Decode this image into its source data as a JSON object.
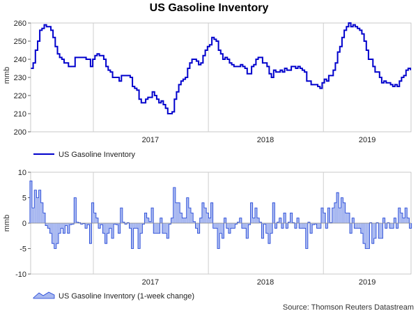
{
  "title": "US Gasoline Inventory",
  "source": "Source: Thomson Reuters Datastream",
  "chart_data": [
    {
      "type": "line",
      "ylabel": "mmb",
      "ylim": [
        200,
        260
      ],
      "yticks": [
        200,
        210,
        220,
        230,
        240,
        250,
        260
      ],
      "xtick_labels": [
        "2017",
        "2018",
        "2019"
      ],
      "grid": "vertical year lines",
      "legend_position": "bottom-left",
      "series": [
        {
          "name": "US Gasoline Inventory",
          "color": "#0000cc",
          "start": "2016-06-17",
          "step_days": 7,
          "values": [
            235,
            238,
            245,
            250,
            256,
            257,
            259,
            258,
            258,
            256,
            252,
            247,
            243,
            241,
            240,
            238,
            238,
            236,
            236,
            236,
            241,
            241,
            241,
            241,
            241,
            240,
            240,
            236,
            240,
            242,
            243,
            242,
            242,
            240,
            236,
            234,
            233,
            230,
            230,
            230,
            228,
            231,
            231,
            231,
            231,
            230,
            225,
            224,
            223,
            218,
            216,
            216,
            218,
            219,
            219,
            222,
            220,
            218,
            216,
            217,
            215,
            213,
            210,
            210,
            211,
            218,
            222,
            226,
            228,
            229,
            230,
            235,
            238,
            240,
            240,
            239,
            237,
            238,
            242,
            245,
            247,
            248,
            252,
            251,
            250,
            245,
            243,
            240,
            241,
            240,
            238,
            237,
            236,
            236,
            236,
            237,
            236,
            235,
            232,
            232,
            236,
            237,
            240,
            241,
            241,
            238,
            238,
            236,
            232,
            230,
            234,
            233,
            233,
            234,
            233,
            235,
            234,
            234,
            236,
            236,
            235,
            236,
            235,
            234,
            233,
            228,
            228,
            226,
            226,
            226,
            225,
            224,
            227,
            229,
            228,
            231,
            231,
            234,
            238,
            244,
            247,
            252,
            256,
            258,
            260,
            258,
            259,
            258,
            257,
            256,
            254,
            250,
            245,
            240,
            240,
            236,
            233,
            233,
            230,
            227,
            228,
            227,
            227,
            226,
            225,
            226,
            225,
            228,
            230,
            231,
            234,
            235,
            234
          ]
        }
      ]
    },
    {
      "type": "bar",
      "ylabel": "mmb",
      "ylim": [
        -10,
        10
      ],
      "yticks": [
        -10,
        -5,
        0,
        5,
        10
      ],
      "xtick_labels": [
        "2017",
        "2018",
        "2019"
      ],
      "grid": "vertical year lines",
      "legend_position": "bottom-left",
      "series": [
        {
          "name": "US Gasoline Inventory (1-week change)",
          "color": "#a8b8f0",
          "edge_color": "#1a3fd6",
          "start": "2016-06-17",
          "step_days": 7,
          "values": [
            8.3,
            3.0,
            6.5,
            5.0,
            6.5,
            4.0,
            2.0,
            -0.5,
            -1.0,
            -2.0,
            -4.0,
            -5.0,
            -4.0,
            -2.0,
            -1.0,
            -2.0,
            -0.5,
            -2.0,
            -0.3,
            -0.2,
            5.0,
            0.2,
            0.1,
            -0.2,
            -0.1,
            -1.0,
            -0.3,
            -4.0,
            4.0,
            2.0,
            1.0,
            -1.0,
            -0.3,
            -2.0,
            -4.0,
            -2.0,
            -1.0,
            -3.0,
            -0.2,
            -0.3,
            -2.0,
            3.0,
            0.2,
            -0.2,
            0.1,
            -1.0,
            -5.0,
            -1.0,
            -1.0,
            -5.0,
            -2.0,
            -0.2,
            2.0,
            1.0,
            0.3,
            3.0,
            -2.0,
            -2.0,
            -2.0,
            1.0,
            -2.0,
            -2.0,
            -3.0,
            -0.2,
            1.0,
            7.0,
            4.0,
            4.0,
            2.0,
            1.0,
            1.0,
            5.0,
            3.0,
            2.0,
            0.3,
            -1.0,
            -2.0,
            1.0,
            4.0,
            3.0,
            2.0,
            1.0,
            4.0,
            -1.0,
            -1.0,
            -5.0,
            -2.0,
            -3.0,
            1.0,
            -1.0,
            -2.0,
            -1.0,
            -1.0,
            -0.2,
            0.2,
            1.0,
            -1.0,
            -1.0,
            -3.0,
            -0.3,
            4.0,
            1.0,
            3.0,
            1.0,
            0.2,
            -3.0,
            -0.2,
            -2.0,
            -4.0,
            -2.0,
            4.0,
            -1.0,
            0.2,
            1.0,
            -1.0,
            2.0,
            -1.0,
            0.2,
            2.0,
            0.1,
            -1.0,
            1.0,
            -1.0,
            -1.0,
            -1.0,
            -5.0,
            0.2,
            -2.0,
            -0.3,
            -0.2,
            -1.0,
            -1.0,
            3.0,
            2.0,
            -1.0,
            3.0,
            0.1,
            3.0,
            4.0,
            6.0,
            3.0,
            5.0,
            4.0,
            2.0,
            2.0,
            -2.0,
            1.0,
            -1.0,
            -1.0,
            -1.0,
            -2.0,
            -4.0,
            -5.0,
            -5.0,
            0.1,
            -4.0,
            -3.0,
            0.1,
            -3.0,
            -3.0,
            1.0,
            -1.0,
            0.1,
            -1.0,
            -1.0,
            1.0,
            -1.0,
            3.0,
            2.0,
            1.0,
            3.0,
            1.0,
            -1.0
          ]
        }
      ]
    }
  ]
}
